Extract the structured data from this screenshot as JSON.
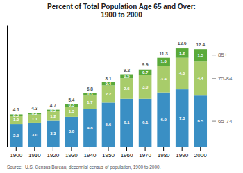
{
  "chart_data": {
    "type": "bar",
    "stacked": true,
    "data_labels": true,
    "tick_labels": "x",
    "title": "Percent of Total Population Age 65 and Over:\n1900 to 2000",
    "categories": [
      "1900",
      "1910",
      "1920",
      "1930",
      "1940",
      "1950",
      "1960",
      "1970",
      "1980",
      "1990",
      "2000"
    ],
    "series": [
      {
        "name": "65-74",
        "color": "#3a8fc4",
        "values": [
          2.9,
          3.0,
          3.3,
          3.8,
          4.8,
          5.6,
          6.1,
          6.1,
          6.9,
          7.3,
          6.5
        ],
        "value_labels": [
          "2.9",
          "3.0",
          "3.3",
          "3.8",
          "4.8",
          "5.6",
          "6.1",
          "6.1",
          "6.9",
          "7.3",
          "6.5"
        ]
      },
      {
        "name": "75-84",
        "color": "#a8cc6a",
        "values": [
          1.0,
          1.1,
          1.2,
          1.3,
          1.7,
          2.2,
          2.6,
          3.0,
          3.4,
          4.0,
          4.4
        ],
        "value_labels": [
          "1.0",
          "1.1",
          "1.2",
          "1.3",
          "1.7",
          "2.2",
          "2.6",
          "3.0",
          "3.4",
          "4.0",
          "4.4"
        ]
      },
      {
        "name": "85+",
        "color": "#5aaa3a",
        "values": [
          0.2,
          0.2,
          0.2,
          0.3,
          0.3,
          0.4,
          0.5,
          0.7,
          1.0,
          1.2,
          1.5
        ],
        "value_labels": [
          "0.2",
          "0.2",
          "0.2",
          "0.3",
          "0.3",
          "0.4",
          "0.5",
          "0.7",
          "1.0",
          "1.2",
          "1.5"
        ]
      }
    ],
    "totals": [
      4.1,
      4.3,
      4.7,
      5.4,
      6.8,
      8.1,
      9.2,
      9.9,
      11.3,
      12.6,
      12.4
    ],
    "ylim": [
      0,
      15.5
    ],
    "annotations": [
      "Source:  U.S. Census Bureau, decennial census of population, 1900 to 2000."
    ]
  }
}
